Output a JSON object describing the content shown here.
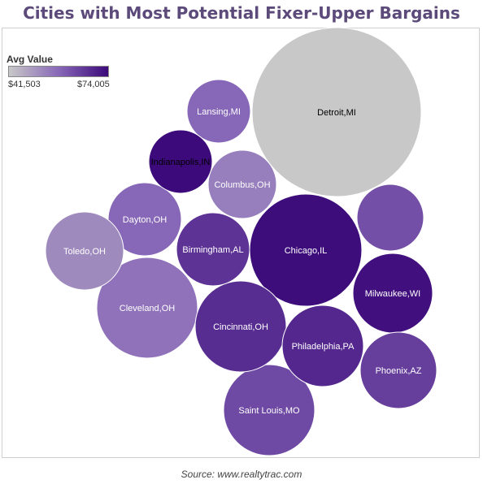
{
  "title": "Cities with Most Potential Fixer-Upper Bargains",
  "source": "Source: www.realtytrac.com",
  "legend": {
    "title": "Avg Value",
    "min_label": "$41,503",
    "max_label": "$74,005"
  },
  "chart_data": {
    "type": "bubble",
    "title": "Cities with Most Potential Fixer-Upper Bargains",
    "color_scale": {
      "min": 41503,
      "max": 74005,
      "min_color": "#c8c8c8",
      "max_color": "#3c0a7a"
    },
    "bubbles": [
      {
        "label": "Detroit,MI",
        "avg_value": 41503,
        "text_color": "#000000"
      },
      {
        "label": "Chicago,IL",
        "avg_value": 73500,
        "text_color": "#ffffff"
      },
      {
        "label": "Cleveland,OH",
        "avg_value": 56000,
        "text_color": "#ffffff"
      },
      {
        "label": "Saint Louis,MO",
        "avg_value": 63000,
        "text_color": "#ffffff"
      },
      {
        "label": "Cincinnati,OH",
        "avg_value": 68000,
        "text_color": "#ffffff"
      },
      {
        "label": "Philadelphia,PA",
        "avg_value": 69000,
        "text_color": "#ffffff"
      },
      {
        "label": "Milwaukee,WI",
        "avg_value": 73000,
        "text_color": "#ffffff"
      },
      {
        "label": "Phoenix,AZ",
        "avg_value": 65000,
        "text_color": "#ffffff"
      },
      {
        "label": "Birmingham,AL",
        "avg_value": 67000,
        "text_color": "#ffffff"
      },
      {
        "label": "Dayton,OH",
        "avg_value": 58000,
        "text_color": "#ffffff"
      },
      {
        "label": "Toledo,OH",
        "avg_value": 52000,
        "text_color": "#ffffff"
      },
      {
        "label": "Columbus,OH",
        "avg_value": 54000,
        "text_color": "#ffffff"
      },
      {
        "label": "Lansing,MI",
        "avg_value": 58000,
        "text_color": "#ffffff"
      },
      {
        "label": "Indianapolis,IN",
        "avg_value": 74005,
        "text_color": "#000000"
      },
      {
        "label": "",
        "avg_value": 62000,
        "text_color": "#ffffff"
      }
    ]
  }
}
